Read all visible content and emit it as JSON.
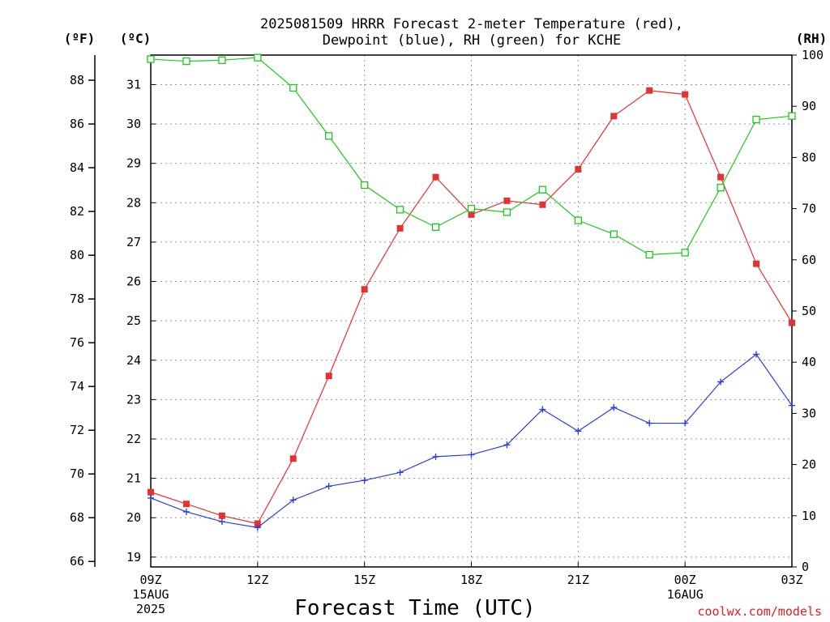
{
  "chart_data": {
    "type": "line",
    "title_line1": "2025081509 HRRR Forecast 2-meter Temperature (red),",
    "title_line2": "Dewpoint (blue), RH (green) for KCHE",
    "xlabel": "Forecast Time (UTC)",
    "credit": "coolwx.com/models",
    "units": {
      "left_f": "(ºF)",
      "left_c": "(ºC)",
      "right_rh": "(RH)"
    },
    "x_hours": [
      0,
      1,
      2,
      3,
      4,
      5,
      6,
      7,
      8,
      9,
      10,
      11,
      12,
      13,
      14,
      15,
      16,
      17,
      18
    ],
    "x_ticks": [
      {
        "hour": 0,
        "label": "09Z",
        "sub1": "15AUG",
        "sub2": "2025"
      },
      {
        "hour": 3,
        "label": "12Z",
        "sub1": "",
        "sub2": ""
      },
      {
        "hour": 6,
        "label": "15Z",
        "sub1": "",
        "sub2": ""
      },
      {
        "hour": 9,
        "label": "18Z",
        "sub1": "",
        "sub2": ""
      },
      {
        "hour": 12,
        "label": "21Z",
        "sub1": "",
        "sub2": ""
      },
      {
        "hour": 15,
        "label": "00Z",
        "sub1": "16AUG",
        "sub2": ""
      },
      {
        "hour": 18,
        "label": "03Z",
        "sub1": "",
        "sub2": ""
      }
    ],
    "xlim": [
      0,
      18
    ],
    "ylim_c": [
      18.75,
      31.75
    ],
    "ylim_rh": [
      0,
      100
    ],
    "yticks_c": [
      "19",
      "20",
      "21",
      "22",
      "23",
      "24",
      "25",
      "26",
      "27",
      "28",
      "29",
      "30",
      "31"
    ],
    "yticks_f": [
      "66",
      "68",
      "70",
      "72",
      "74",
      "76",
      "78",
      "80",
      "82",
      "84",
      "86",
      "88"
    ],
    "yticks_rh": [
      "0",
      "10",
      "20",
      "30",
      "40",
      "50",
      "60",
      "70",
      "80",
      "90",
      "100"
    ],
    "grid": true,
    "series": [
      {
        "name": "Temperature",
        "axis": "c",
        "color": "#e43232",
        "marker": "filled-square",
        "values": [
          20.65,
          20.35,
          20.05,
          19.85,
          21.5,
          23.6,
          25.8,
          27.35,
          28.65,
          27.7,
          28.05,
          27.95,
          28.85,
          30.2,
          30.85,
          30.75,
          28.65,
          26.45,
          24.95
        ]
      },
      {
        "name": "Dewpoint",
        "axis": "c",
        "color": "#2a3fe0",
        "marker": "plus",
        "values": [
          20.5,
          20.15,
          19.9,
          19.75,
          20.45,
          20.8,
          20.95,
          21.15,
          21.55,
          21.6,
          21.85,
          22.75,
          22.2,
          22.8,
          22.4,
          22.4,
          23.45,
          24.15,
          22.85
        ]
      },
      {
        "name": "RH",
        "axis": "rh",
        "color": "#1ec81e",
        "marker": "open-square",
        "values": [
          99.2,
          98.8,
          99.0,
          99.5,
          93.6,
          84.2,
          74.6,
          69.8,
          66.4,
          70.0,
          69.3,
          73.7,
          67.7,
          65.0,
          61.0,
          61.4,
          74.1,
          87.4,
          88.1
        ]
      }
    ]
  }
}
